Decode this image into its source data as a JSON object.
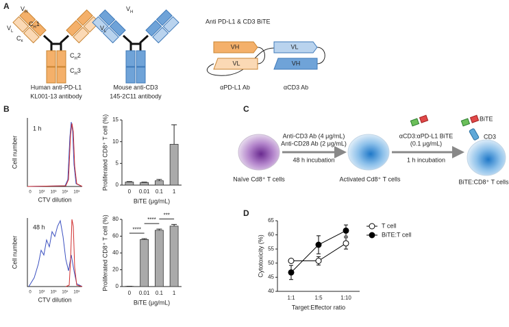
{
  "panels": [
    "A",
    "B",
    "C",
    "D"
  ],
  "antibodies": [
    {
      "labels": [
        {
          "main": "V",
          "sub": "H"
        },
        {
          "main": "C",
          "sub": "H",
          "tail": "1"
        },
        {
          "main": "V",
          "sub": "L"
        },
        {
          "main": "C",
          "sub": "κ"
        },
        {
          "main": "C",
          "sub": "H",
          "tail": "2"
        },
        {
          "main": "C",
          "sub": "H",
          "tail": "3"
        }
      ],
      "caption": [
        "Human anti-PD-L1",
        "KL001-13 antibody"
      ]
    },
    {
      "labels": [
        {
          "main": "V",
          "sub": "H"
        },
        {
          "main": "V",
          "sub": "L"
        }
      ],
      "caption": [
        "Mouse anti-CD3",
        "145-2C11 antibody"
      ]
    }
  ],
  "bite": {
    "title": "Anti PD-L1 & CD3 BiTE",
    "domains": [
      "VH",
      "VL",
      "VL",
      "VH"
    ],
    "captions": [
      "αPD-L1 Ab",
      "αCD3 Ab"
    ]
  },
  "histograms": [
    {
      "label": "1 h",
      "ylabel": "Cell number",
      "xlabel": "CTV dilution",
      "xticks": [
        "0",
        "10²",
        "10³",
        "10⁴",
        "10⁵"
      ]
    },
    {
      "label": "48 h",
      "ylabel": "Cell number",
      "xlabel": "CTV dilution",
      "xticks": [
        "0",
        "10²",
        "10³",
        "10⁴",
        "10⁵"
      ]
    }
  ],
  "workflow": {
    "step1": [
      "Anti-CD3 Ab (4 μg/mL)",
      "Anti-CD28 Ab (2 μg/mL)",
      "48 h incubation"
    ],
    "step2": [
      "αCD3:αPD-L1 BiTE",
      "(0.1 μg/mL)",
      "1 h incubation"
    ],
    "icons": [
      "BiTE",
      "CD3"
    ],
    "cells": [
      "Naïve Cd8⁺ T cells",
      "Activated Cd8⁺ T cells",
      "BiTE:CD8⁺ T cells"
    ]
  },
  "chart_data": [
    {
      "type": "bar",
      "ylabel": "Proliferated CD8⁺ T cell (%)",
      "xlabel": "BiTE (μg/mL)",
      "categories": [
        "0",
        "0.01",
        "0.1",
        "1"
      ],
      "values": [
        0.7,
        0.6,
        1.0,
        9.4
      ],
      "errors": [
        0.1,
        0.1,
        0.3,
        4.5
      ],
      "color": "#aaaaaa",
      "ylim": [
        0,
        15
      ],
      "yticks": [
        0,
        5,
        10,
        15
      ]
    },
    {
      "type": "bar",
      "ylabel": "Proliferated CD8⁺ T cell (%)",
      "xlabel": "BiTE (μg/mL)",
      "categories": [
        "0",
        "0.01",
        "0.1",
        "1"
      ],
      "values": [
        0.3,
        56,
        67,
        72
      ],
      "errors": [
        0,
        1,
        1.5,
        2
      ],
      "color": "#aaaaaa",
      "ylim": [
        0,
        80
      ],
      "yticks": [
        0,
        20,
        40,
        60,
        80
      ],
      "annotations": [
        "****",
        "****",
        "***"
      ]
    },
    {
      "type": "line",
      "ylabel": "Cytotoxicity (%)",
      "xlabel": "Target:Effector ratio",
      "categories": [
        "1:1",
        "1:5",
        "1:10"
      ],
      "series": [
        {
          "name": "T cell",
          "color": "#000000",
          "marker": "open",
          "values": [
            50.8,
            50.8,
            57
          ],
          "errors": [
            0.5,
            1.5,
            2
          ]
        },
        {
          "name": "BiTE:T cell",
          "color": "#000000",
          "marker": "filled",
          "values": [
            46.7,
            56.5,
            61.5
          ],
          "errors": [
            2.5,
            3.2,
            2
          ]
        }
      ],
      "ylim": [
        40,
        65
      ],
      "yticks": [
        40,
        45,
        50,
        55,
        60,
        65
      ],
      "legend": "top-right"
    }
  ]
}
